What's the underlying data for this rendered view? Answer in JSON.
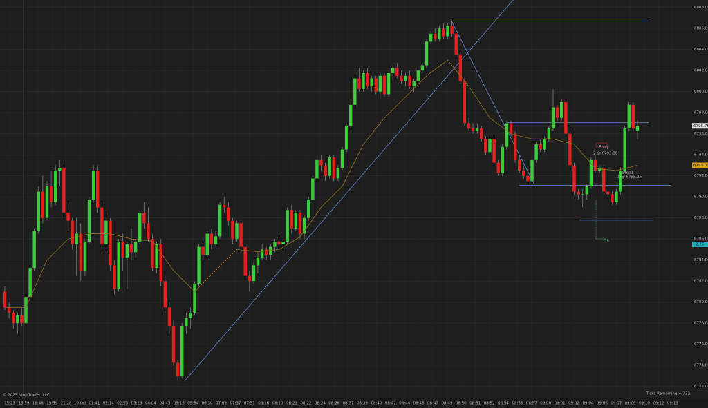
{
  "chart_data": {
    "type": "candlestick",
    "up_color": "#3ccd3c",
    "down_color": "#e3201e",
    "wick_color": "#8a8a8a",
    "ylim": [
      6771.0,
      6808.7
    ],
    "yticks": [
      {
        "value": 6808,
        "label": "6808.00"
      },
      {
        "value": 6806,
        "label": "6806.00"
      },
      {
        "value": 6804,
        "label": "6804.00"
      },
      {
        "value": 6802,
        "label": "6802.00"
      },
      {
        "value": 6800,
        "label": "6800.00"
      },
      {
        "value": 6798,
        "label": "6798.00"
      },
      {
        "value": 6796,
        "label": "6796.00"
      },
      {
        "value": 6794,
        "label": "6794.00"
      },
      {
        "value": 6792,
        "label": "6792.00"
      },
      {
        "value": 6790,
        "label": "6790.00"
      },
      {
        "value": 6788,
        "label": "6788.00"
      },
      {
        "value": 6786,
        "label": "6786.00"
      },
      {
        "value": 6784,
        "label": "6784.00"
      },
      {
        "value": 6782,
        "label": "6782.00"
      },
      {
        "value": 6780,
        "label": "6780.00"
      },
      {
        "value": 6778,
        "label": "6778.00"
      },
      {
        "value": 6776,
        "label": "6776.00"
      },
      {
        "value": 6774,
        "label": "6774.00"
      },
      {
        "value": 6772,
        "label": "6772.00"
      }
    ],
    "grid": true,
    "time_labels": [
      "15:23",
      "15:59",
      "18:48",
      "19:59",
      "21:28",
      "10 Oct",
      "01:41",
      "02:14",
      "02:53",
      "03:28",
      "04:04",
      "04:43",
      "05:15",
      "05:54",
      "06:30",
      "07:09",
      "07:37",
      "07:51",
      "08:16",
      "08:20",
      "08:21",
      "08:22",
      "08:24",
      "08:26",
      "08:37",
      "08:39",
      "08:40",
      "08:42",
      "08:44",
      "08:45",
      "08:47",
      "08:49",
      "08:50",
      "08:51",
      "08:52",
      "08:54",
      "08:55",
      "08:57",
      "09:00",
      "09:01",
      "09:02",
      "09:04",
      "09:06",
      "09:07",
      "09:09",
      "09:10",
      "09:12",
      "09:13"
    ],
    "candles": [
      [
        6781.0,
        6781.5,
        6779.25,
        6779.5
      ],
      [
        6779.5,
        6780.0,
        6778.5,
        6779.0
      ],
      [
        6779.0,
        6779.25,
        6777.5,
        6778.0
      ],
      [
        6778.0,
        6779.0,
        6777.0,
        6778.75
      ],
      [
        6778.75,
        6779.5,
        6777.75,
        6778.0
      ],
      [
        6778.0,
        6780.75,
        6777.75,
        6780.5
      ],
      [
        6780.5,
        6783.5,
        6780.25,
        6783.25
      ],
      [
        6783.25,
        6787.0,
        6783.0,
        6786.75
      ],
      [
        6786.75,
        6791.0,
        6786.5,
        6790.5
      ],
      [
        6790.5,
        6792.0,
        6787.5,
        6788.0
      ],
      [
        6788.0,
        6791.5,
        6787.75,
        6791.0
      ],
      [
        6791.0,
        6792.5,
        6789.0,
        6789.5
      ],
      [
        6789.5,
        6793.0,
        6789.25,
        6792.5
      ],
      [
        6792.5,
        6793.5,
        6791.0,
        6792.75
      ],
      [
        6792.75,
        6793.25,
        6788.0,
        6788.5
      ],
      [
        6788.5,
        6789.5,
        6786.75,
        6787.75
      ],
      [
        6787.75,
        6788.0,
        6785.0,
        6785.5
      ],
      [
        6785.5,
        6788.0,
        6782.5,
        6786.5
      ],
      [
        6786.5,
        6787.5,
        6782.0,
        6783.0
      ],
      [
        6783.0,
        6786.0,
        6782.5,
        6785.75
      ],
      [
        6785.75,
        6790.0,
        6785.5,
        6789.75
      ],
      [
        6789.75,
        6793.0,
        6789.5,
        6792.5
      ],
      [
        6792.5,
        6793.0,
        6788.5,
        6789.0
      ],
      [
        6789.0,
        6789.5,
        6785.0,
        6785.5
      ],
      [
        6785.5,
        6788.5,
        6785.0,
        6787.75
      ],
      [
        6787.75,
        6788.0,
        6783.0,
        6783.5
      ],
      [
        6783.5,
        6784.0,
        6780.75,
        6781.25
      ],
      [
        6781.25,
        6786.0,
        6781.0,
        6785.75
      ],
      [
        6785.75,
        6786.5,
        6783.0,
        6784.25
      ],
      [
        6784.25,
        6785.75,
        6781.25,
        6785.5
      ],
      [
        6785.5,
        6787.0,
        6784.0,
        6784.75
      ],
      [
        6784.75,
        6786.0,
        6784.25,
        6785.75
      ],
      [
        6785.75,
        6788.75,
        6785.5,
        6788.5
      ],
      [
        6788.5,
        6789.5,
        6787.0,
        6787.5
      ],
      [
        6787.5,
        6789.0,
        6785.75,
        6786.0
      ],
      [
        6786.0,
        6786.5,
        6783.0,
        6783.25
      ],
      [
        6783.25,
        6785.75,
        6782.75,
        6785.5
      ],
      [
        6785.5,
        6786.0,
        6781.5,
        6782.0
      ],
      [
        6782.0,
        6782.5,
        6779.0,
        6779.5
      ],
      [
        6779.5,
        6780.0,
        6777.0,
        6777.75
      ],
      [
        6777.75,
        6778.25,
        6774.0,
        6774.25
      ],
      [
        6774.25,
        6774.5,
        6772.5,
        6773.0
      ],
      [
        6773.0,
        6778.0,
        6772.75,
        6777.75
      ],
      [
        6777.75,
        6779.0,
        6777.0,
        6778.5
      ],
      [
        6778.5,
        6779.5,
        6777.5,
        6779.0
      ],
      [
        6779.0,
        6782.0,
        6778.75,
        6781.75
      ],
      [
        6781.75,
        6785.5,
        6781.5,
        6785.25
      ],
      [
        6785.25,
        6786.0,
        6784.0,
        6784.5
      ],
      [
        6784.5,
        6786.75,
        6784.25,
        6786.5
      ],
      [
        6786.5,
        6787.0,
        6785.0,
        6785.5
      ],
      [
        6785.5,
        6786.75,
        6785.25,
        6786.25
      ],
      [
        6786.25,
        6789.5,
        6786.0,
        6789.25
      ],
      [
        6789.25,
        6790.0,
        6788.5,
        6789.0
      ],
      [
        6789.0,
        6789.5,
        6787.25,
        6787.75
      ],
      [
        6787.75,
        6788.0,
        6785.5,
        6786.0
      ],
      [
        6786.0,
        6787.75,
        6785.75,
        6787.5
      ],
      [
        6787.5,
        6787.75,
        6785.0,
        6785.25
      ],
      [
        6785.25,
        6785.5,
        6782.25,
        6782.5
      ],
      [
        6782.5,
        6783.0,
        6781.0,
        6782.0
      ],
      [
        6782.0,
        6783.75,
        6781.75,
        6783.5
      ],
      [
        6783.5,
        6784.75,
        6782.75,
        6784.25
      ],
      [
        6784.25,
        6785.5,
        6784.0,
        6785.0
      ],
      [
        6785.0,
        6785.25,
        6784.0,
        6784.5
      ],
      [
        6784.5,
        6785.5,
        6784.0,
        6785.25
      ],
      [
        6785.25,
        6786.0,
        6784.75,
        6785.75
      ],
      [
        6785.75,
        6786.25,
        6785.0,
        6785.5
      ],
      [
        6785.5,
        6786.0,
        6784.75,
        6785.75
      ],
      [
        6785.75,
        6789.0,
        6785.5,
        6788.75
      ],
      [
        6788.75,
        6789.25,
        6786.5,
        6787.0
      ],
      [
        6787.0,
        6788.75,
        6786.75,
        6788.5
      ],
      [
        6788.5,
        6788.75,
        6786.0,
        6786.5
      ],
      [
        6786.5,
        6788.25,
        6786.0,
        6788.0
      ],
      [
        6788.0,
        6790.0,
        6787.75,
        6789.75
      ],
      [
        6789.75,
        6792.0,
        6789.5,
        6791.75
      ],
      [
        6791.75,
        6794.0,
        6791.5,
        6793.5
      ],
      [
        6793.5,
        6794.0,
        6792.5,
        6793.0
      ],
      [
        6793.0,
        6793.25,
        6791.5,
        6792.0
      ],
      [
        6792.0,
        6794.0,
        6791.75,
        6793.75
      ],
      [
        6793.75,
        6794.0,
        6791.5,
        6791.75
      ],
      [
        6791.75,
        6793.0,
        6791.5,
        6792.75
      ],
      [
        6792.75,
        6794.75,
        6792.5,
        6794.5
      ],
      [
        6794.5,
        6797.0,
        6794.25,
        6796.75
      ],
      [
        6796.75,
        6799.0,
        6796.5,
        6798.75
      ],
      [
        6798.75,
        6801.5,
        6798.5,
        6801.25
      ],
      [
        6801.25,
        6802.25,
        6800.0,
        6800.25
      ],
      [
        6800.25,
        6802.0,
        6800.0,
        6801.75
      ],
      [
        6801.75,
        6802.25,
        6800.25,
        6800.5
      ],
      [
        6800.5,
        6801.5,
        6800.0,
        6801.25
      ],
      [
        6801.25,
        6801.5,
        6799.75,
        6800.0
      ],
      [
        6800.0,
        6801.75,
        6799.25,
        6801.5
      ],
      [
        6801.5,
        6801.75,
        6799.5,
        6799.75
      ],
      [
        6799.75,
        6802.0,
        6799.5,
        6801.75
      ],
      [
        6801.75,
        6802.5,
        6801.0,
        6802.25
      ],
      [
        6802.25,
        6802.75,
        6801.25,
        6801.5
      ],
      [
        6801.5,
        6802.0,
        6800.75,
        6801.0
      ],
      [
        6801.0,
        6801.75,
        6800.5,
        6801.5
      ],
      [
        6801.5,
        6802.0,
        6800.25,
        6800.5
      ],
      [
        6800.5,
        6801.25,
        6800.0,
        6801.0
      ],
      [
        6801.0,
        6802.25,
        6800.75,
        6802.0
      ],
      [
        6802.0,
        6802.75,
        6801.75,
        6802.5
      ],
      [
        6802.5,
        6805.0,
        6802.25,
        6804.75
      ],
      [
        6804.75,
        6805.75,
        6804.5,
        6805.5
      ],
      [
        6805.5,
        6806.0,
        6804.75,
        6805.0
      ],
      [
        6805.0,
        6806.25,
        6804.75,
        6806.0
      ],
      [
        6806.0,
        6806.5,
        6805.0,
        6805.25
      ],
      [
        6805.25,
        6806.5,
        6805.0,
        6806.25
      ],
      [
        6806.25,
        6806.75,
        6805.25,
        6805.5
      ],
      [
        6805.5,
        6805.75,
        6803.25,
        6803.5
      ],
      [
        6803.5,
        6803.75,
        6800.75,
        6801.0
      ],
      [
        6801.0,
        6801.25,
        6796.75,
        6797.0
      ],
      [
        6797.0,
        6797.5,
        6796.25,
        6796.5
      ],
      [
        6796.5,
        6797.0,
        6796.0,
        6796.25
      ],
      [
        6796.25,
        6797.0,
        6796.0,
        6796.5
      ],
      [
        6796.5,
        6796.75,
        6795.25,
        6795.5
      ],
      [
        6795.5,
        6795.75,
        6794.0,
        6794.25
      ],
      [
        6794.25,
        6795.75,
        6794.0,
        6795.5
      ],
      [
        6795.5,
        6795.75,
        6793.0,
        6793.25
      ],
      [
        6793.25,
        6793.5,
        6792.0,
        6792.25
      ],
      [
        6792.25,
        6795.0,
        6792.0,
        6794.75
      ],
      [
        6794.75,
        6797.25,
        6794.5,
        6797.0
      ],
      [
        6797.0,
        6797.25,
        6795.75,
        6796.0
      ],
      [
        6796.0,
        6796.25,
        6793.25,
        6793.5
      ],
      [
        6793.5,
        6794.0,
        6792.25,
        6792.5
      ],
      [
        6792.5,
        6793.0,
        6791.75,
        6792.0
      ],
      [
        6792.0,
        6792.5,
        6791.25,
        6791.5
      ],
      [
        6791.5,
        6794.0,
        6791.25,
        6793.5
      ],
      [
        6793.5,
        6795.25,
        6793.25,
        6795.0
      ],
      [
        6795.0,
        6795.5,
        6794.25,
        6794.5
      ],
      [
        6794.5,
        6795.75,
        6794.25,
        6795.5
      ],
      [
        6795.5,
        6796.75,
        6795.25,
        6796.5
      ],
      [
        6796.5,
        6800.25,
        6796.25,
        6798.5
      ],
      [
        6798.5,
        6798.75,
        6797.25,
        6797.5
      ],
      [
        6797.5,
        6799.25,
        6797.25,
        6799.0
      ],
      [
        6799.0,
        6799.25,
        6795.75,
        6796.0
      ],
      [
        6796.0,
        6796.25,
        6792.75,
        6793.0
      ],
      [
        6793.0,
        6793.25,
        6790.25,
        6790.5
      ],
      [
        6790.5,
        6790.75,
        6789.75,
        6790.25
      ],
      [
        6790.25,
        6790.75,
        6789.0,
        6790.25
      ],
      [
        6790.25,
        6791.25,
        6789.75,
        6791.0
      ],
      [
        6791.0,
        6793.75,
        6790.75,
        6793.5
      ],
      [
        6793.5,
        6794.0,
        6792.25,
        6792.5
      ],
      [
        6792.5,
        6793.0,
        6792.25,
        6792.75
      ],
      [
        6792.75,
        6793.0,
        6790.25,
        6790.5
      ],
      [
        6790.5,
        6790.75,
        6790.0,
        6790.25
      ],
      [
        6790.25,
        6790.5,
        6789.25,
        6789.5
      ],
      [
        6789.5,
        6790.75,
        6789.25,
        6790.5
      ],
      [
        6790.5,
        6792.75,
        6790.25,
        6792.5
      ],
      [
        6792.5,
        6796.75,
        6792.25,
        6796.5
      ],
      [
        6796.5,
        6799.0,
        6796.25,
        6798.75
      ],
      [
        6798.75,
        6799.0,
        6796.25,
        6796.5
      ],
      [
        6796.25,
        6797.25,
        6795.5,
        6796.75
      ]
    ],
    "ma": {
      "color": "#8c6f1f",
      "x": [
        0,
        5,
        10,
        15,
        20,
        25,
        30,
        35,
        40,
        45,
        50,
        55,
        60,
        65,
        70,
        75,
        80,
        85,
        90,
        95,
        100,
        105,
        110,
        115,
        120,
        125,
        130,
        135,
        140,
        145,
        150
      ],
      "values": [
        6779.5,
        6779.5,
        6784.0,
        6786.0,
        6786.5,
        6786.5,
        6786.0,
        6785.8,
        6783.0,
        6781.0,
        6783.0,
        6785.0,
        6784.8,
        6785.0,
        6786.2,
        6789.0,
        6791.0,
        6795.0,
        6797.5,
        6799.5,
        6801.5,
        6803.0,
        6800.5,
        6797.5,
        6796.0,
        6795.5,
        6795.5,
        6795.0,
        6792.7,
        6792.5,
        6793.0
      ]
    },
    "drawings": {
      "color": "#5f80c8",
      "lines": [
        {
          "x": [
            42.6,
            120.5
          ],
          "y": [
            6772.5,
            6808.7
          ]
        },
        {
          "x": [
            105.9,
            125.6
          ],
          "y": [
            6806.7,
            6791.15
          ]
        },
        {
          "x": [
            105.9,
            152.6
          ],
          "y": [
            6806.7,
            6806.7
          ]
        },
        {
          "x": [
            119.0,
            152.6
          ],
          "y": [
            6797.05,
            6797.05
          ]
        },
        {
          "x": [
            122.0,
            157.9
          ],
          "y": [
            6791.1,
            6791.1
          ]
        },
        {
          "x": [
            136.2,
            153.7
          ],
          "y": [
            6787.8,
            6787.8
          ]
        }
      ]
    },
    "last_price": 6796.75,
    "ma_price": {
      "value": 6793,
      "label": "6793.00"
    },
    "indicator_tag": "2.75",
    "entry_label": "Entry",
    "entry_detail": "2 @ 6793.00",
    "stop_label": "Stop1",
    "stop_detail": "1 @ 6795.25",
    "marker_text": "26",
    "copyright": "© 2025 NinjaTrader, LLC",
    "ticks_remaining": "Ticks Remaining = 332"
  }
}
